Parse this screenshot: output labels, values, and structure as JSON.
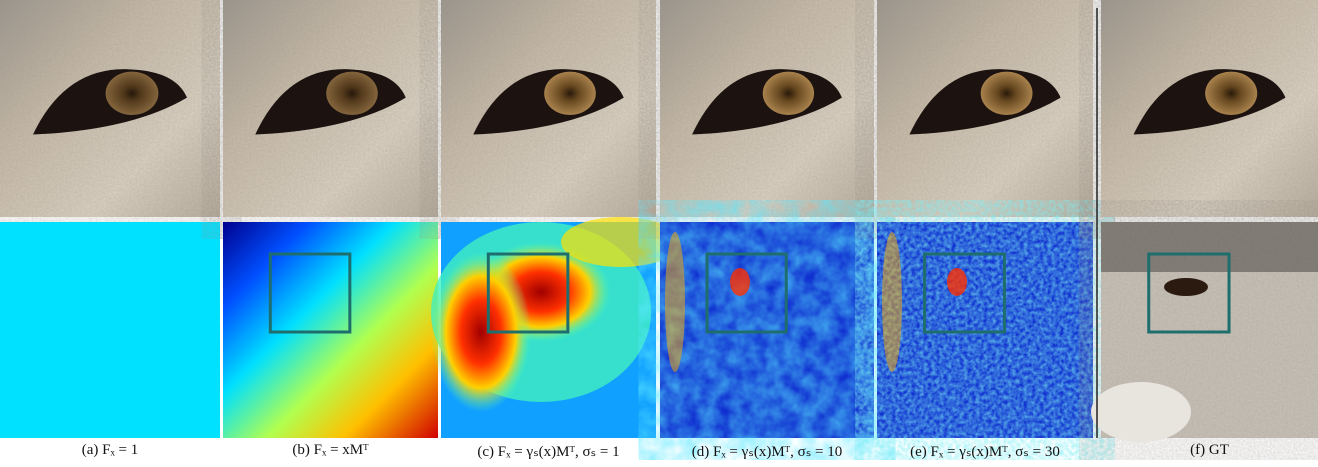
{
  "figure": {
    "captions": [
      "(a) Fₓ = 1",
      "(b) Fₓ = xMᵀ",
      "(c) Fₓ = γₛ(x)Mᵀ, σₛ = 1",
      "(d) Fₓ = γₛ(x)Mᵀ, σₛ = 10",
      "(e) Fₓ = γₛ(x)Mᵀ, σₛ = 30",
      "(f) GT"
    ]
  }
}
